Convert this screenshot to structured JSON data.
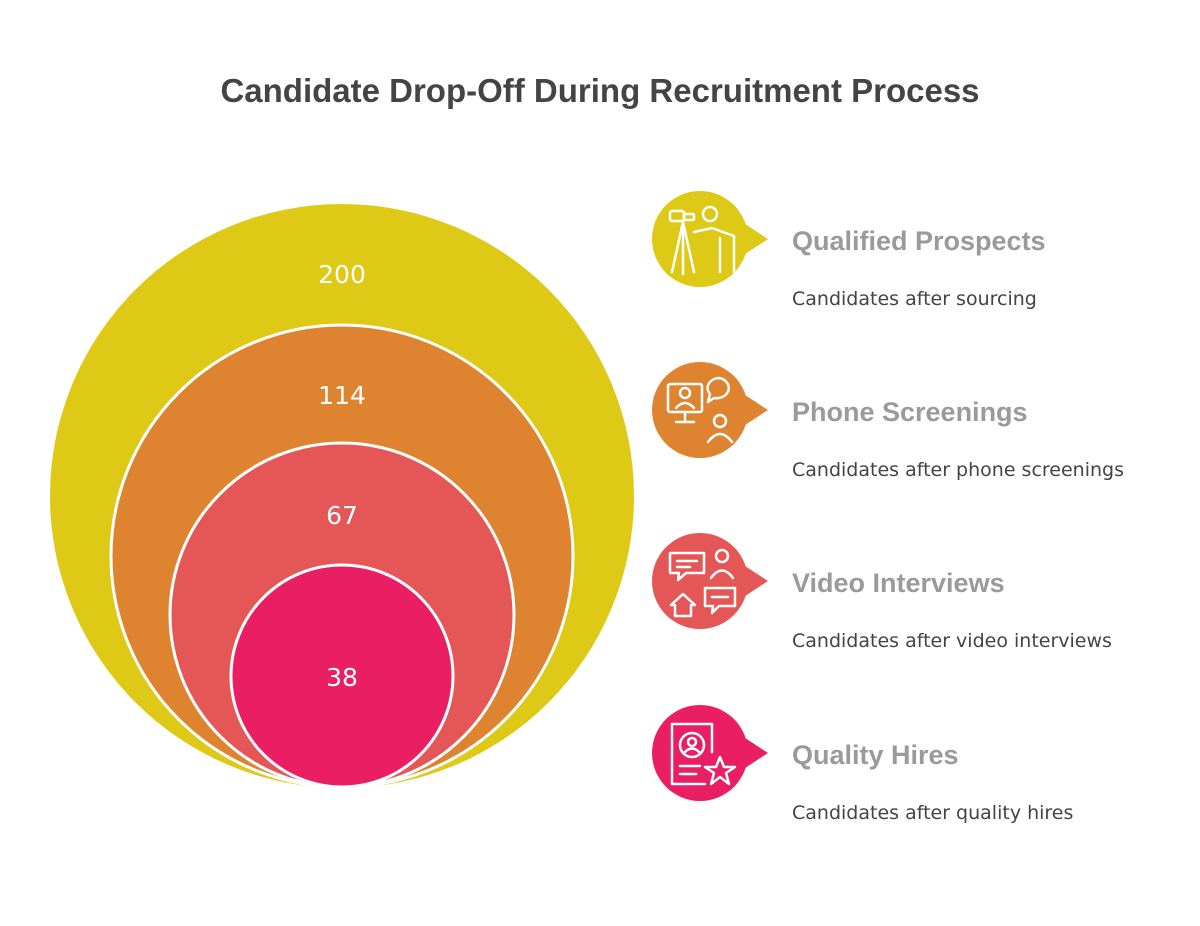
{
  "title": "Candidate Drop-Off During Recruitment Process",
  "chart_data": {
    "type": "nested-circles",
    "title": "Candidate Drop-Off During Recruitment Process",
    "stages": [
      {
        "name": "Qualified Prospects",
        "value": 200,
        "description": "Candidates after sourcing",
        "color": "#DDC916",
        "icon": "binoculars-person-icon"
      },
      {
        "name": "Phone Screenings",
        "value": 114,
        "description": "Candidates after phone screenings",
        "color": "#DE8430",
        "icon": "video-call-chat-icon"
      },
      {
        "name": "Video Interviews",
        "value": 67,
        "description": "Candidates after video interviews",
        "color": "#E55757",
        "icon": "chat-people-home-icon"
      },
      {
        "name": "Quality Hires",
        "value": 38,
        "description": "Candidates after quality hires",
        "color": "#E91E63",
        "icon": "profile-card-star-icon"
      }
    ]
  }
}
